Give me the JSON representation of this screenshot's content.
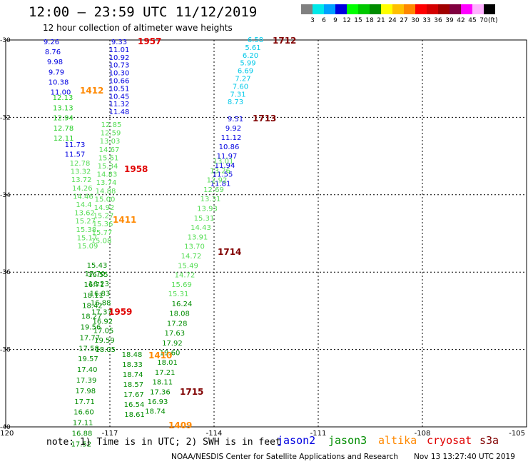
{
  "header": {
    "title": "12:00 – 23:59 UTC 11/12/2019",
    "subtitle": "12 hour collection of altimeter wave heights"
  },
  "legend": {
    "colors": [
      "#808080",
      "#00e8e8",
      "#00a0ff",
      "#0000e0",
      "#00ff00",
      "#00c800",
      "#008c00",
      "#ffff00",
      "#ffc000",
      "#ff8800",
      "#ff0000",
      "#d40000",
      "#a00000",
      "#800040",
      "#ff00ff",
      "#ffb0ff",
      "#000000"
    ],
    "labels": [
      "3",
      "6",
      "9",
      "12",
      "15",
      "18",
      "21",
      "24",
      "27",
      "30",
      "33",
      "36",
      "39",
      "42",
      "45",
      "70"
    ],
    "unit": "(ft)"
  },
  "map": {
    "lon_range": [
      -120,
      -105
    ],
    "lat_range": [
      -40,
      -30
    ],
    "x_tick_labels": [
      "-120",
      "-117",
      "-114",
      "-111",
      "-108",
      "-105"
    ],
    "y_tick_labels": [
      "-30",
      "-32",
      "-34",
      "-36",
      "-38",
      "-40"
    ],
    "grid": "dashed gridlines every 3° lon and 2° lat",
    "time_labels": [
      {
        "text": "1957",
        "color": "#e00000"
      },
      {
        "text": "1412",
        "color": "#ff8800"
      },
      {
        "text": "1712",
        "color": "#800000"
      },
      {
        "text": "1713",
        "color": "#800000"
      },
      {
        "text": "1958",
        "color": "#e00000"
      },
      {
        "text": "1411",
        "color": "#ff8800"
      },
      {
        "text": "1714",
        "color": "#800000"
      },
      {
        "text": "1959",
        "color": "#e00000"
      },
      {
        "text": "1410",
        "color": "#ff8800"
      },
      {
        "text": "1715",
        "color": "#800000"
      },
      {
        "text": "1409",
        "color": "#ff8800"
      }
    ],
    "tracks": [
      {
        "id": "a",
        "color": "#0000e0",
        "values": [
          "9.26",
          "8.76",
          "9.98",
          "9.79",
          "10.38",
          "11.00"
        ]
      },
      {
        "id": "b",
        "color": "#0000e0",
        "values": [
          "9.33",
          "11.01",
          "10.92",
          "10.73",
          "10.30",
          "10.66",
          "10.51",
          "10.45",
          "11.32",
          "11.48"
        ]
      },
      {
        "id": "c",
        "color": "#00c8e8",
        "values": [
          "6.58",
          "5.61",
          "6.20",
          "5.99",
          "6.69",
          "7.27",
          "7.60",
          "7.31",
          "8.73"
        ]
      },
      {
        "id": "d",
        "color": "#0000e0",
        "values": [
          "9.51",
          "9.92",
          "11.12",
          "10.86",
          "11.97",
          "11.94",
          "11.55",
          "11.81"
        ]
      },
      {
        "id": "e",
        "color": "#22cc22",
        "values": [
          "12.13",
          "13.13",
          "12.94",
          "12.78",
          "12.11"
        ]
      },
      {
        "id": "f",
        "color": "#0000e0",
        "values": [
          "11.73",
          "11.57"
        ]
      },
      {
        "id": "g",
        "color": "#55dd55",
        "values": [
          "12.78",
          "13.32",
          "13.72",
          "14.26",
          "14.46",
          "14.4",
          "13.62",
          "15.27",
          "15.38",
          "15.17",
          "15.09"
        ]
      },
      {
        "id": "h",
        "color": "#55dd55",
        "values": [
          "12.85",
          "12.59",
          "13.03",
          "14.67",
          "15.51",
          "15.34",
          "14.83",
          "13.74",
          "14.88",
          "15.00",
          "14.92",
          "15.27",
          "15.36",
          "15.77",
          "15.08"
        ]
      },
      {
        "id": "i",
        "color": "#55dd55",
        "values": [
          "13.01",
          "13.26",
          "12.92",
          "12.69",
          "13.31",
          "13.93",
          "15.31",
          "14.43",
          "13.91",
          "13.70",
          "14.72",
          "15.49",
          "14.72",
          "15.69",
          "15.31"
        ]
      },
      {
        "id": "j",
        "color": "#008c00",
        "values": [
          "15.43",
          "16.55",
          "16.23",
          "16.83",
          "16.88",
          "17.37",
          "16.92",
          "17.05",
          "19.59",
          "18.05"
        ]
      },
      {
        "id": "k",
        "color": "#008c00",
        "values": [
          "17.70",
          "16.71",
          "18.11",
          "18.42",
          "18.27",
          "19.56",
          "17.77",
          "17.58",
          "19.57",
          "17.40",
          "17.39",
          "17.98",
          "17.71",
          "16.60",
          "17.11",
          "16.88",
          "17.52"
        ]
      },
      {
        "id": "l",
        "color": "#008c00",
        "values": [
          "16.24",
          "18.08",
          "17.28",
          "17.63",
          "17.92",
          "19.60",
          "18.01",
          "17.21",
          "18.11",
          "17.36",
          "16.93",
          "18.74"
        ]
      },
      {
        "id": "m",
        "color": "#008c00",
        "values": [
          "18.48",
          "18.33",
          "18.74",
          "18.57",
          "17.67",
          "16.54",
          "18.61"
        ]
      }
    ]
  },
  "footer": {
    "note": "note: 1) Time is in UTC; 2) SWH is in feet",
    "satellites": [
      {
        "name": "jason2",
        "color": "#0000e0"
      },
      {
        "name": "jason3",
        "color": "#008c00"
      },
      {
        "name": "altika",
        "color": "#ff8800"
      },
      {
        "name": "cryosat",
        "color": "#e00000"
      },
      {
        "name": "s3a",
        "color": "#800000"
      }
    ],
    "credit": "NOAA/NESDIS Center for Satellite Applications and Research",
    "timestamp": "Nov 13 13:27:40 UTC 2019"
  }
}
